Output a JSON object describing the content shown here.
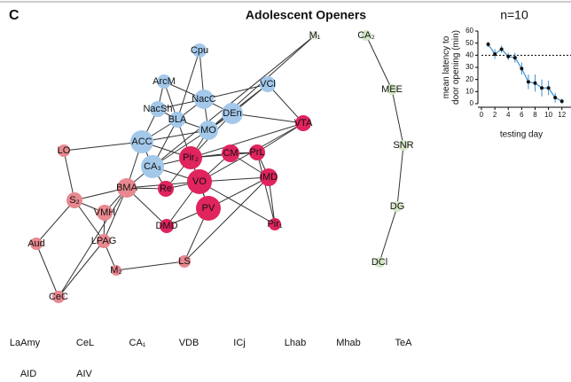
{
  "panel_label": "C",
  "title": "Adolescent Openers",
  "nodes": [
    {
      "label": "Cpu",
      "color": "#a3c8ea"
    },
    {
      "label": "M₁",
      "color": "#e3ead9"
    },
    {
      "label": "CA₂",
      "color": "#d4e6c6"
    },
    {
      "label": "ArcM",
      "color": "#a3c8ea"
    },
    {
      "label": "NacC",
      "color": "#a3c8ea"
    },
    {
      "label": "VCl",
      "color": "#a3c8ea"
    },
    {
      "label": "NacSh",
      "color": "#a3c8ea"
    },
    {
      "label": "BLA",
      "color": "#a3c8ea"
    },
    {
      "label": "DEn",
      "color": "#a3c8ea"
    },
    {
      "label": "MO",
      "color": "#a3c8ea"
    },
    {
      "label": "VTA",
      "color": "#e0245e"
    },
    {
      "label": "ACC",
      "color": "#a3c8ea"
    },
    {
      "label": "LO",
      "color": "#e8888f"
    },
    {
      "label": "CA₃",
      "color": "#a3c8ea"
    },
    {
      "label": "Pir₂",
      "color": "#e0245e"
    },
    {
      "label": "CM",
      "color": "#e0245e"
    },
    {
      "label": "PrL",
      "color": "#e0245e"
    },
    {
      "label": "MEE",
      "color": "#d4e6c6"
    },
    {
      "label": "SNR",
      "color": "#d4e6c6"
    },
    {
      "label": "BMA",
      "color": "#e8888f"
    },
    {
      "label": "S₂",
      "color": "#e8888f"
    },
    {
      "label": "VO",
      "color": "#e0245e"
    },
    {
      "label": "Re",
      "color": "#e0245e"
    },
    {
      "label": "VMH",
      "color": "#e8888f"
    },
    {
      "label": "IMD",
      "color": "#e0245e"
    },
    {
      "label": "PV",
      "color": "#e0245e"
    },
    {
      "label": "DMD",
      "color": "#e0245e"
    },
    {
      "label": "Pir₁",
      "color": "#e0245e"
    },
    {
      "label": "DG",
      "color": "#d4e6c6"
    },
    {
      "label": "LPAG",
      "color": "#e8888f"
    },
    {
      "label": "Aud",
      "color": "#e8888f"
    },
    {
      "label": "M₂",
      "color": "#e8888f"
    },
    {
      "label": "LS",
      "color": "#e8888f"
    },
    {
      "label": "DCl",
      "color": "#d4e6c6"
    },
    {
      "label": "CeC",
      "color": "#e8888f"
    }
  ],
  "isolated": [
    "LaAmy",
    "CeL",
    "CA₁",
    "VDB",
    "ICj",
    "Lhab",
    "Mhab",
    "TeA",
    "AID",
    "AIV"
  ],
  "chart_data": {
    "type": "line",
    "title": "n=10",
    "x_label": "testing day",
    "y_label": "mean latency to door opening (min)",
    "x": [
      1,
      2,
      3,
      4,
      5,
      6,
      7,
      8,
      9,
      10,
      11,
      12
    ],
    "values": [
      49,
      41,
      45,
      39,
      38,
      29,
      18,
      17,
      13,
      13,
      5,
      2
    ],
    "errors": [
      2,
      4,
      3,
      3,
      4,
      5,
      6,
      7,
      7,
      6,
      4,
      2
    ],
    "hline": 40,
    "color": "#3a8fd0",
    "xlim": [
      0,
      12.3
    ],
    "xticks": [
      0,
      2,
      4,
      6,
      8,
      10,
      12
    ],
    "ylim": [
      0,
      60
    ],
    "yticks": [
      0,
      10,
      20,
      30,
      40,
      50,
      60
    ]
  }
}
